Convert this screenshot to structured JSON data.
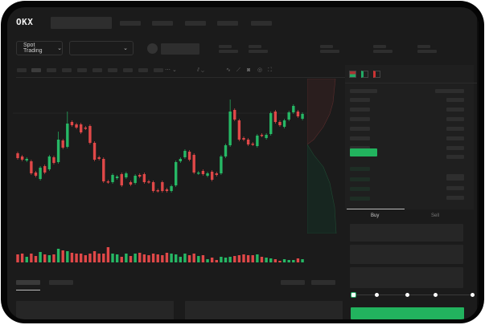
{
  "header": {
    "brand": "OKX",
    "nav_count": 5
  },
  "controls": {
    "market_select": "Spot Trading",
    "market_chevron": "⌄",
    "pair_chevron": "⌄"
  },
  "toolbar": {
    "icons": [
      "indicator-icon",
      "draw-line-icon",
      "ruler-icon",
      "camera-icon",
      "settings-icon",
      "fullscreen-icon"
    ]
  },
  "orderbook": {
    "view_icons": [
      "both-sides-icon",
      "bids-only-icon",
      "asks-only-icon"
    ]
  },
  "trade": {
    "buy_tab": "Buy",
    "sell_tab": "Sell",
    "slider_value_percent": 0
  },
  "colors": {
    "up": "#26b865",
    "down": "#e04848",
    "background": "#1b1b1b",
    "accent": "#22b35e"
  },
  "chart_data": {
    "type": "candlestick",
    "title": "",
    "candles": [
      [
        118,
        112
      ],
      [
        114,
        110
      ],
      [
        109,
        111
      ],
      [
        108,
        93
      ],
      [
        94,
        90
      ],
      [
        86,
        100
      ],
      [
        102,
        94
      ],
      [
        98,
        114
      ],
      [
        113,
        106
      ],
      [
        107,
        135
      ],
      [
        134,
        125
      ],
      [
        126,
        155
      ],
      [
        157,
        153
      ],
      [
        154,
        150
      ],
      [
        154,
        144
      ],
      [
        150,
        149
      ],
      [
        152,
        131
      ],
      [
        131,
        110
      ],
      [
        113,
        111
      ],
      [
        111,
        83
      ],
      [
        83,
        82
      ],
      [
        82,
        91
      ],
      [
        87,
        89
      ],
      [
        92,
        78
      ],
      [
        88,
        93
      ],
      [
        82,
        79
      ],
      [
        81,
        90
      ],
      [
        91,
        89
      ],
      [
        92,
        82
      ],
      [
        83,
        82
      ],
      [
        82,
        71
      ],
      [
        72,
        71
      ],
      [
        82,
        71
      ],
      [
        73,
        71
      ],
      [
        71,
        77
      ],
      [
        78,
        107
      ],
      [
        108,
        111
      ],
      [
        113,
        121
      ],
      [
        120,
        110
      ],
      [
        116,
        94
      ],
      [
        93,
        94
      ],
      [
        96,
        92
      ],
      [
        90,
        93
      ],
      [
        95,
        85
      ],
      [
        93,
        91
      ],
      [
        93,
        114
      ],
      [
        114,
        128
      ],
      [
        128,
        170
      ],
      [
        172,
        160
      ],
      [
        159,
        135
      ],
      [
        137,
        135
      ],
      [
        135,
        129
      ],
      [
        130,
        129
      ],
      [
        127,
        140
      ],
      [
        141,
        140
      ],
      [
        137,
        141
      ],
      [
        142,
        168
      ],
      [
        170,
        157
      ],
      [
        157,
        153
      ],
      [
        151,
        159
      ],
      [
        160,
        169
      ],
      [
        169,
        177
      ],
      [
        170,
        164
      ],
      [
        161,
        167
      ]
    ],
    "volume": [
      10,
      11,
      7,
      11,
      8,
      13,
      10,
      9,
      10,
      17,
      15,
      14,
      12,
      11,
      11,
      9,
      11,
      14,
      11,
      11,
      19,
      11,
      10,
      7,
      11,
      8,
      11,
      12,
      10,
      9,
      11,
      10,
      9,
      12,
      11,
      10,
      7,
      11,
      9,
      11,
      8,
      9,
      4,
      6,
      3,
      7,
      6,
      7,
      8,
      9,
      10,
      9,
      9,
      10,
      7,
      6,
      5,
      4,
      2,
      4,
      3,
      3,
      5,
      4
    ]
  }
}
